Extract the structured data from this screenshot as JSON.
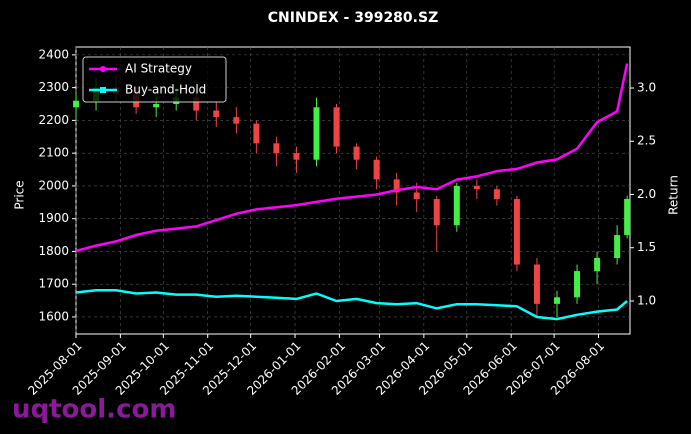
{
  "chart_data": {
    "type": "candlestick",
    "title": "CNINDEX - 399280.SZ",
    "y_label": "Price",
    "y2_label": "Return",
    "watermark": "uqtool.com",
    "x": [
      "2025-08-01",
      "2025-08-15",
      "2025-08-29",
      "2025-09-12",
      "2025-09-26",
      "2025-10-10",
      "2025-10-24",
      "2025-11-07",
      "2025-11-21",
      "2025-12-05",
      "2025-12-19",
      "2026-01-02",
      "2026-01-16",
      "2026-01-30",
      "2026-02-13",
      "2026-02-27",
      "2026-03-13",
      "2026-03-27",
      "2026-04-10",
      "2026-04-24",
      "2026-05-08",
      "2026-05-22",
      "2026-06-05",
      "2026-06-19",
      "2026-07-03",
      "2026-07-17",
      "2026-07-31",
      "2026-08-14",
      "2026-08-21"
    ],
    "ohlc": {
      "open": [
        2240,
        2260,
        2300,
        2280,
        2240,
        2250,
        2270,
        2230,
        2210,
        2190,
        2130,
        2100,
        2080,
        2240,
        2120,
        2080,
        2020,
        1980,
        1960,
        1880,
        2000,
        1990,
        1960,
        1760,
        1640,
        1660,
        1740,
        1780,
        1850
      ],
      "high": [
        2290,
        2330,
        2340,
        2300,
        2280,
        2300,
        2290,
        2260,
        2240,
        2200,
        2150,
        2120,
        2270,
        2250,
        2130,
        2090,
        2040,
        2010,
        1970,
        2010,
        2020,
        2000,
        1970,
        1780,
        1680,
        1760,
        1800,
        1880,
        1970
      ],
      "low": [
        2200,
        2230,
        2260,
        2220,
        2210,
        2230,
        2200,
        2180,
        2160,
        2100,
        2060,
        2040,
        2060,
        2100,
        2050,
        1990,
        1940,
        1920,
        1800,
        1860,
        1960,
        1940,
        1740,
        1600,
        1600,
        1640,
        1700,
        1760,
        1840
      ],
      "close": [
        2260,
        2300,
        2280,
        2240,
        2250,
        2270,
        2230,
        2210,
        2190,
        2130,
        2100,
        2080,
        2240,
        2120,
        2080,
        2020,
        1980,
        1960,
        1880,
        2000,
        1990,
        1960,
        1760,
        1640,
        1660,
        1740,
        1780,
        1850,
        1960
      ]
    },
    "up_color": "#44ee44",
    "down_color": "#ee4444",
    "series": [
      {
        "name": "AI Strategy",
        "color": "#ff00ff",
        "axis": "y2",
        "marker": "circle",
        "values": [
          1.47,
          1.52,
          1.56,
          1.62,
          1.66,
          1.68,
          1.7,
          1.76,
          1.82,
          1.86,
          1.88,
          1.9,
          1.93,
          1.96,
          1.98,
          2.0,
          2.04,
          2.07,
          2.05,
          2.14,
          2.17,
          2.22,
          2.24,
          2.3,
          2.33,
          2.43,
          2.68,
          2.78,
          3.23
        ]
      },
      {
        "name": "Buy-and-Hold",
        "color": "#00ffff",
        "axis": "y2",
        "marker": "square",
        "values": [
          1.08,
          1.1,
          1.1,
          1.07,
          1.08,
          1.06,
          1.06,
          1.04,
          1.05,
          1.04,
          1.03,
          1.02,
          1.07,
          1.0,
          1.02,
          0.98,
          0.97,
          0.98,
          0.93,
          0.97,
          0.97,
          0.96,
          0.95,
          0.85,
          0.83,
          0.87,
          0.9,
          0.92,
          1.0
        ]
      }
    ],
    "xlim": [
      "2025-08-01",
      "2026-08-23"
    ],
    "xticks": [
      "2025-08-01",
      "2025-09-01",
      "2025-10-01",
      "2025-11-01",
      "2025-12-01",
      "2026-01-01",
      "2026-02-01",
      "2026-03-01",
      "2026-04-01",
      "2026-05-01",
      "2026-06-01",
      "2026-07-01",
      "2026-08-01"
    ],
    "ylim": [
      1548,
      2424
    ],
    "yticks": [
      1600,
      1700,
      1800,
      1900,
      2000,
      2100,
      2200,
      2300,
      2400
    ],
    "y2lim": [
      0.69,
      3.385
    ],
    "y2ticks": [
      1.0,
      1.5,
      2.0,
      2.5,
      3.0
    ],
    "grid": true,
    "legend": "upper left"
  }
}
